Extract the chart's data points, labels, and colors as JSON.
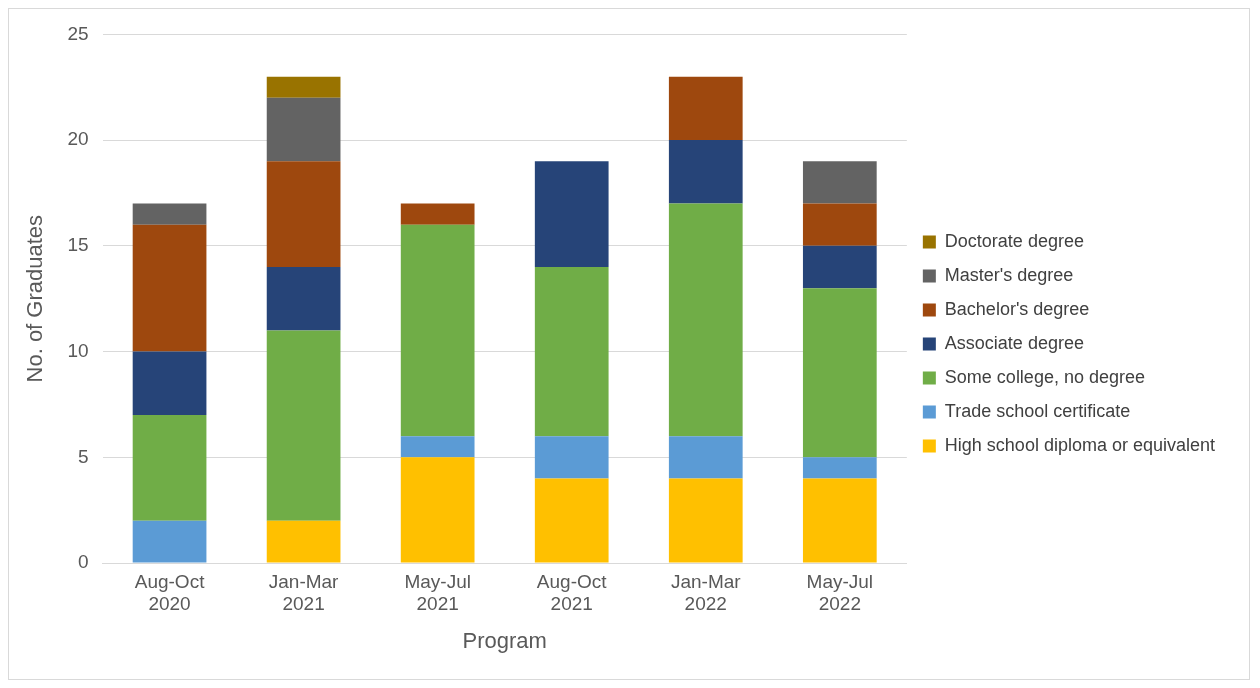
{
  "chart_data": {
    "type": "bar",
    "stacked": true,
    "xlabel": "Program",
    "ylabel": "No. of Graduates",
    "categories": [
      "Aug-Oct 2020",
      "Jan-Mar 2021",
      "May-Jul 2021",
      "Aug-Oct 2021",
      "Jan-Mar 2022",
      "May-Jul 2022"
    ],
    "series": [
      {
        "name": "High school diploma or equivalent",
        "color": "#ffc000",
        "values": [
          0,
          2,
          5,
          4,
          4,
          4
        ]
      },
      {
        "name": "Trade school certificate",
        "color": "#5b9bd5",
        "values": [
          2,
          0,
          1,
          2,
          2,
          1
        ]
      },
      {
        "name": "Some college, no degree",
        "color": "#70ad47",
        "values": [
          5,
          9,
          10,
          8,
          11,
          8
        ]
      },
      {
        "name": "Associate degree",
        "color": "#264478",
        "values": [
          3,
          3,
          0,
          5,
          3,
          2
        ]
      },
      {
        "name": "Bachelor's degree",
        "color": "#9e480e",
        "values": [
          6,
          5,
          1,
          0,
          3,
          2
        ]
      },
      {
        "name": "Master's degree",
        "color": "#636363",
        "values": [
          1,
          3,
          0,
          0,
          0,
          2
        ]
      },
      {
        "name": "Doctorate degree",
        "color": "#997300",
        "values": [
          0,
          1,
          0,
          0,
          0,
          0
        ]
      }
    ],
    "ylim": [
      0,
      25
    ],
    "yticks": [
      0,
      5,
      10,
      15,
      20,
      25
    ],
    "grid": "y",
    "legend": "right"
  }
}
